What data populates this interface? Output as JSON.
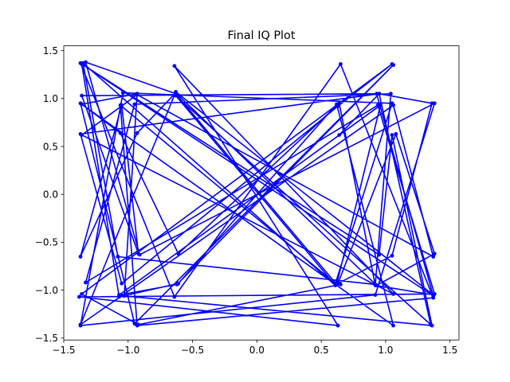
{
  "chart_data": {
    "type": "line",
    "title": "Final IQ Plot",
    "xlabel": "",
    "ylabel": "",
    "xlim": [
      -1.5,
      1.57
    ],
    "ylim": [
      -1.52,
      1.55
    ],
    "xticks": [
      -1.5,
      -1.0,
      -0.5,
      0.0,
      0.5,
      1.0,
      1.5
    ],
    "xtick_labels": [
      "−1.5",
      "−1.0",
      "−0.5",
      "0.0",
      "0.5",
      "1.0",
      "1.5"
    ],
    "yticks": [
      -1.5,
      -1.0,
      -0.5,
      0.0,
      0.5,
      1.0,
      1.5
    ],
    "ytick_labels": [
      "−1.5",
      "−1.0",
      "−0.5",
      "0.0",
      "0.5",
      "1.0",
      "1.5"
    ],
    "grid": false,
    "series": [
      {
        "color": "#0000ff",
        "marker": "dot",
        "x": [
          0.64,
          0.95,
          1.36,
          1.05,
          0.63,
          1.08,
          1.38,
          0.93,
          -0.63,
          -0.93,
          -1.37,
          -1.05,
          -0.92,
          -1.36,
          0.93,
          1.37,
          -1.36,
          -1.07,
          -0.61,
          0.62,
          1.06,
          -1.36,
          -0.93,
          -1.03,
          1.36,
          1.05,
          0.95,
          -1.37,
          -0.64,
          0.65,
          1.37,
          -0.93,
          -1.06,
          0.61,
          1.05,
          -1.04,
          -1.37,
          0.92,
          1.38,
          -0.91,
          -1.33,
          -0.63,
          0.62,
          0.96,
          -1.07,
          -0.62,
          1.06,
          -0.95,
          -1.37,
          -1.06,
          -0.61,
          0.64,
          0.92,
          1.37,
          -0.63,
          -1.37,
          1.06,
          1.37,
          -0.93,
          -1.36,
          1.06,
          -0.64,
          0.63,
          -1.38,
          1.38,
          0.94,
          -1.33,
          -0.95,
          1.04,
          0.92,
          -1.08,
          -1.35,
          0.61,
          -0.63,
          1.35,
          0.95,
          -1.37,
          -1.05,
          0.63,
          1.05,
          -1.36,
          -0.92,
          0.65
        ],
        "y": [
          0.62,
          1.05,
          0.95,
          -0.64,
          -0.93,
          0.63,
          -0.62,
          -0.95,
          1.06,
          0.64,
          -0.65,
          0.93,
          -0.62,
          1.03,
          1.05,
          -1.06,
          1.36,
          -1.07,
          -0.93,
          0.94,
          -1.37,
          0.94,
          1.05,
          -1.06,
          -1.37,
          0.62,
          -0.63,
          1.37,
          -1.07,
          1.36,
          -1.08,
          -1.37,
          0.93,
          -0.93,
          0.95,
          1.06,
          -1.37,
          -1.05,
          0.95,
          -0.63,
          1.38,
          1.05,
          -0.94,
          0.93,
          -1.05,
          -0.94,
          1.35,
          -1.35,
          0.95,
          0.64,
          -0.62,
          0.95,
          -0.95,
          -1.05,
          1.07,
          -1.36,
          0.93,
          -0.65,
          1.04,
          0.62,
          -1.04,
          1.34,
          -1.37,
          -1.07,
          -1.04,
          0.93,
          -0.92,
          0.94,
          1.05,
          -0.94,
          -0.65,
          1.37,
          -0.95,
          1.03,
          -1.36,
          1.05,
          0.63,
          -0.93,
          0.92,
          1.36,
          -1.04,
          -1.36,
          -0.94
        ]
      }
    ]
  }
}
